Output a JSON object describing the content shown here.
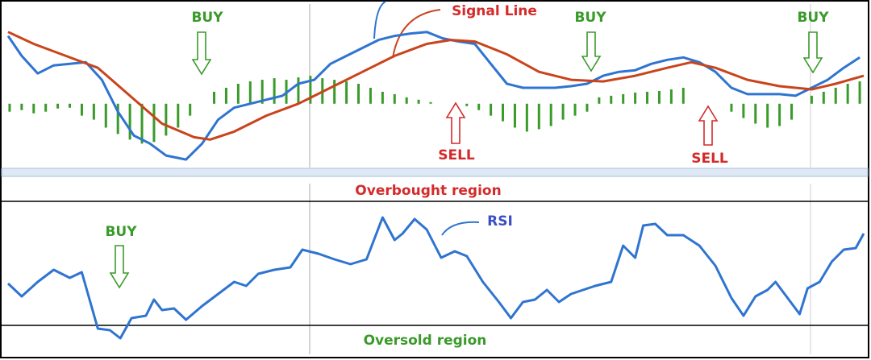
{
  "chart_data": [
    {
      "type": "line",
      "xlim": [
        0,
        1080
      ],
      "ylim": [
        -80,
        125
      ],
      "annotations": [
        "Signal Line",
        "BUY",
        "BUY",
        "BUY",
        "SELL",
        "SELL"
      ],
      "series": [
        {
          "type": "bar",
          "color": "#3a9a2a",
          "x": [
            10,
            25,
            40,
            55,
            70,
            85,
            100,
            115,
            130,
            145,
            160,
            175,
            190,
            205,
            220,
            235,
            265,
            280,
            295,
            310,
            325,
            340,
            355,
            370,
            385,
            400,
            415,
            430,
            445,
            460,
            475,
            490,
            505,
            520,
            535,
            580,
            595,
            610,
            625,
            640,
            655,
            670,
            685,
            700,
            715,
            730,
            745,
            760,
            775,
            790,
            805,
            820,
            835,
            850,
            910,
            925,
            940,
            955,
            970,
            985,
            1010,
            1025,
            1040,
            1055,
            1070
          ],
          "values": [
            -10,
            -8,
            -12,
            -10,
            -6,
            -5,
            -15,
            -20,
            -30,
            -38,
            -45,
            -50,
            -48,
            -40,
            -30,
            -15,
            15,
            20,
            25,
            28,
            30,
            32,
            30,
            33,
            35,
            32,
            30,
            28,
            25,
            20,
            15,
            12,
            8,
            5,
            2,
            -3,
            -8,
            -15,
            -22,
            -30,
            -35,
            -32,
            -28,
            -20,
            -15,
            -10,
            8,
            10,
            12,
            14,
            15,
            16,
            18,
            20,
            -10,
            -18,
            -25,
            -30,
            -28,
            -20,
            10,
            15,
            20,
            25,
            28
          ]
        },
        {
          "type": "line",
          "color": "#2f74d0",
          "x": [
            8,
            25,
            45,
            65,
            85,
            105,
            125,
            145,
            165,
            185,
            205,
            230,
            250,
            270,
            290,
            310,
            330,
            350,
            370,
            390,
            410,
            430,
            450,
            470,
            490,
            510,
            530,
            550,
            570,
            590,
            610,
            630,
            650,
            670,
            690,
            710,
            730,
            750,
            770,
            790,
            810,
            830,
            850,
            870,
            890,
            910,
            930,
            950,
            970,
            990,
            1010,
            1030,
            1050,
            1070
          ],
          "values": [
            85,
            60,
            38,
            48,
            50,
            52,
            30,
            -10,
            -40,
            -50,
            -65,
            -70,
            -50,
            -20,
            -5,
            0,
            5,
            10,
            25,
            30,
            50,
            60,
            70,
            80,
            85,
            88,
            90,
            82,
            78,
            75,
            50,
            25,
            20,
            20,
            20,
            22,
            25,
            35,
            40,
            42,
            50,
            55,
            58,
            52,
            40,
            20,
            12,
            12,
            12,
            10,
            20,
            30,
            45,
            58
          ]
        },
        {
          "type": "line",
          "color": "#c9441c",
          "x": [
            8,
            40,
            80,
            120,
            160,
            200,
            240,
            260,
            290,
            330,
            370,
            410,
            450,
            490,
            530,
            560,
            590,
            630,
            670,
            710,
            750,
            790,
            830,
            860,
            890,
            930,
            970,
            1010,
            1040,
            1075
          ],
          "values": [
            90,
            75,
            60,
            45,
            10,
            -25,
            -42,
            -45,
            -35,
            -15,
            0,
            20,
            40,
            60,
            75,
            80,
            78,
            62,
            40,
            30,
            28,
            35,
            45,
            52,
            45,
            30,
            22,
            18,
            25,
            35
          ]
        }
      ]
    },
    {
      "type": "line",
      "xlim": [
        0,
        1080
      ],
      "ylim": [
        0,
        190
      ],
      "hlines": [
        190,
        36
      ],
      "annotations": [
        "Overbought region",
        "BUY",
        "RSI",
        "Oversold region"
      ],
      "series": [
        {
          "type": "line",
          "color": "#2f74d0",
          "x": [
            8,
            25,
            45,
            65,
            85,
            100,
            120,
            135,
            148,
            162,
            180,
            190,
            200,
            215,
            230,
            250,
            270,
            290,
            305,
            320,
            340,
            360,
            375,
            395,
            415,
            435,
            455,
            475,
            490,
            500,
            515,
            530,
            548,
            565,
            580,
            600,
            620,
            635,
            650,
            665,
            680,
            695,
            710,
            725,
            740,
            760,
            775,
            790,
            800,
            815,
            830,
            850,
            870,
            890,
            910,
            925,
            940,
            955,
            965,
            980,
            995,
            1005,
            1020,
            1035,
            1050,
            1065,
            1075
          ],
          "values": [
            88,
            72,
            90,
            105,
            95,
            102,
            32,
            30,
            20,
            45,
            48,
            68,
            55,
            57,
            43,
            60,
            75,
            90,
            85,
            100,
            105,
            108,
            130,
            125,
            118,
            112,
            118,
            170,
            142,
            150,
            168,
            155,
            120,
            128,
            122,
            90,
            65,
            45,
            65,
            68,
            80,
            65,
            75,
            80,
            85,
            90,
            135,
            120,
            160,
            162,
            148,
            148,
            135,
            110,
            70,
            48,
            72,
            80,
            90,
            70,
            50,
            82,
            90,
            115,
            130,
            132,
            150
          ]
        }
      ]
    }
  ]
}
